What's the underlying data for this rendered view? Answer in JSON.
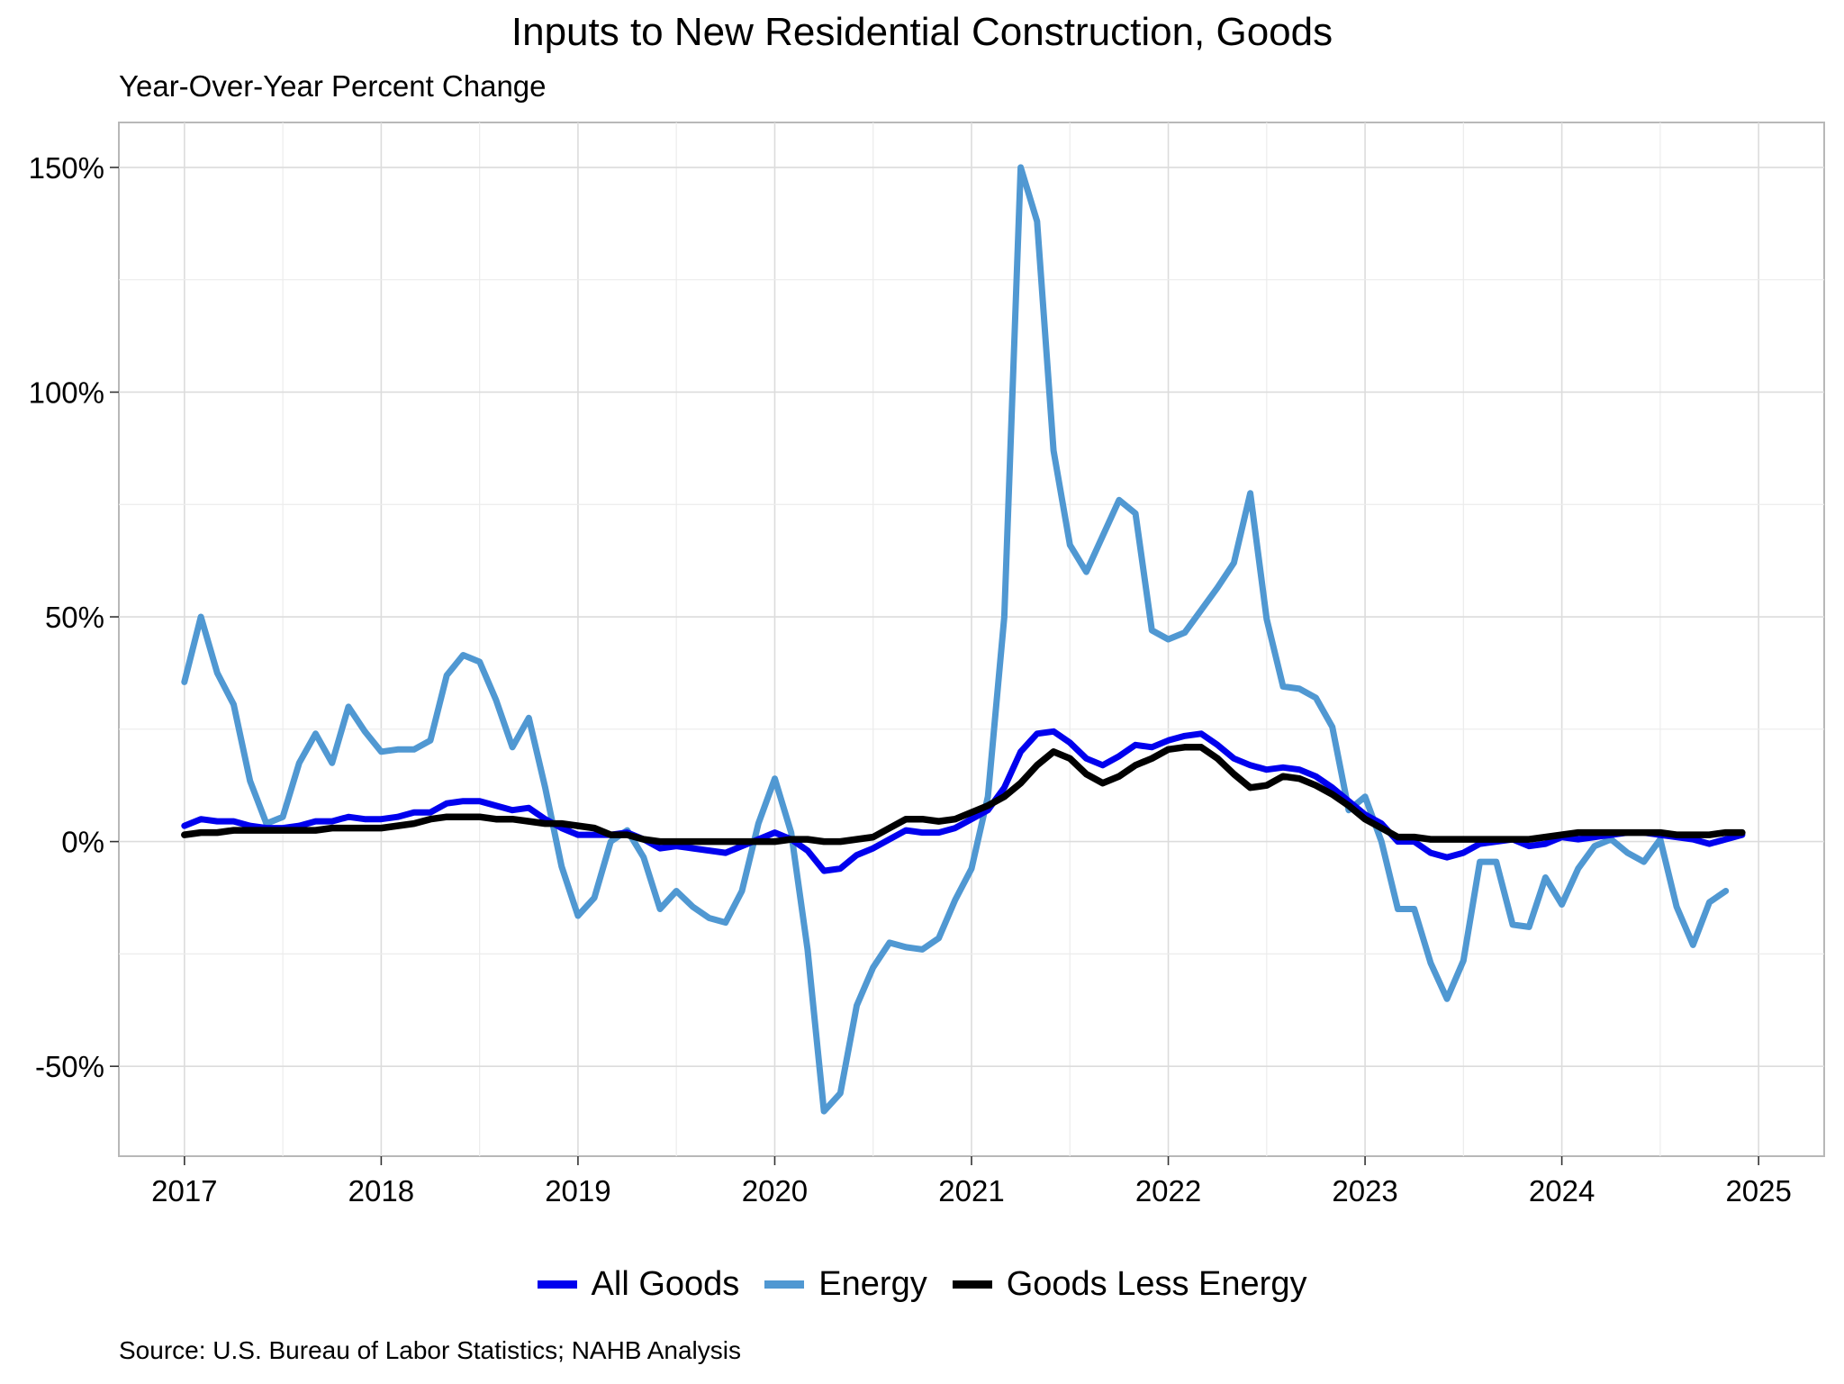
{
  "chart_data": {
    "type": "line",
    "title": "Inputs to New Residential Construction, Goods",
    "subtitle": "Year-Over-Year Percent Change",
    "xlabel": "",
    "ylabel": "",
    "x_ticks": [
      "2017",
      "2018",
      "2019",
      "2020",
      "2021",
      "2022",
      "2023",
      "2024",
      "2025"
    ],
    "y_ticks": [
      "-50%",
      "0%",
      "50%",
      "100%",
      "150%"
    ],
    "y_tick_values": [
      -50,
      0,
      50,
      100,
      150
    ],
    "ylim": [
      -70,
      160
    ],
    "xlim": [
      "2016-09",
      "2025-05"
    ],
    "x_start": "2017-01",
    "grid": true,
    "legend_position": "bottom",
    "source": "Source: U.S. Bureau of Labor Statistics; NAHB Analysis",
    "series": [
      {
        "name": "All Goods",
        "color": "#0000ee",
        "values": [
          3.5,
          5,
          4.5,
          4.5,
          3.5,
          3,
          3,
          3.5,
          4.5,
          4.5,
          5.5,
          5,
          5,
          5.5,
          6.5,
          6.5,
          8.5,
          9,
          9,
          8,
          7,
          7.5,
          5,
          3,
          1.5,
          1.5,
          1.5,
          2,
          0.5,
          -1.5,
          -1,
          -1.5,
          -2,
          -2.5,
          -1,
          0.5,
          2,
          0.5,
          -2,
          -6.5,
          -6,
          -3,
          -1.5,
          0.5,
          2.5,
          2,
          2,
          3,
          5,
          7,
          12,
          20,
          24,
          24.5,
          22,
          18.5,
          17,
          19,
          21.5,
          21,
          22.5,
          23.5,
          24,
          21.5,
          18.5,
          17,
          16,
          16.5,
          16,
          14.5,
          12,
          9,
          6,
          4,
          0,
          0,
          -2.5,
          -3.5,
          -2.5,
          -0.5,
          0,
          0.5,
          -1,
          -0.5,
          1,
          0.5,
          1,
          1.5,
          2,
          2,
          1.5,
          1,
          0.5,
          -0.5,
          0.5,
          1.5
        ]
      },
      {
        "name": "Energy",
        "color": "#5098d2",
        "values": [
          35.5,
          50,
          37.5,
          30.5,
          13.5,
          4,
          5.5,
          17.5,
          24,
          17.5,
          30,
          24.5,
          20,
          20.5,
          20.5,
          22.5,
          37,
          41.5,
          40,
          31.5,
          21,
          27.5,
          12,
          -5.5,
          -16.5,
          -12.5,
          0,
          2.5,
          -3.5,
          -15,
          -11,
          -14.5,
          -17,
          -18,
          -11,
          4,
          14,
          2,
          -24,
          -60,
          -56,
          -36.5,
          -28,
          -22.5,
          -23.5,
          -24,
          -21.5,
          -13,
          -6,
          10,
          50,
          150,
          138,
          87,
          66,
          60,
          68,
          76,
          73,
          47,
          45,
          46.5,
          51.5,
          56.5,
          62,
          77.5,
          49.5,
          34.5,
          34,
          32,
          25.5,
          7,
          10,
          0,
          -15,
          -15,
          -27,
          -35,
          -26.5,
          -4.5,
          -4.5,
          -18.5,
          -19,
          -8,
          -14,
          -6,
          -1,
          0.5,
          -2.5,
          -4.5,
          0.5,
          -14.5,
          -23,
          -13.5,
          -11
        ]
      },
      {
        "name": "Goods Less Energy",
        "color": "#000000",
        "values": [
          1.5,
          2,
          2,
          2.5,
          2.5,
          2.5,
          2.5,
          2.5,
          2.5,
          3,
          3,
          3,
          3,
          3.5,
          4,
          5,
          5.5,
          5.5,
          5.5,
          5,
          5,
          4.5,
          4,
          4,
          3.5,
          3,
          1.5,
          1.5,
          0.5,
          0,
          0,
          0,
          0,
          0,
          0,
          0,
          0,
          0.5,
          0.5,
          0,
          0,
          0.5,
          1,
          3,
          5,
          5,
          4.5,
          5,
          6.5,
          8,
          10,
          13,
          17,
          20,
          18.5,
          15,
          13,
          14.5,
          17,
          18.5,
          20.5,
          21,
          21,
          18.5,
          15,
          12,
          12.5,
          14.5,
          14,
          12.5,
          10.5,
          8,
          5,
          3,
          1,
          1,
          0.5,
          0.5,
          0.5,
          0.5,
          0.5,
          0.5,
          0.5,
          1,
          1.5,
          2,
          2,
          2,
          2,
          2,
          2,
          1.5,
          1.5,
          1.5,
          2,
          2
        ]
      }
    ]
  }
}
